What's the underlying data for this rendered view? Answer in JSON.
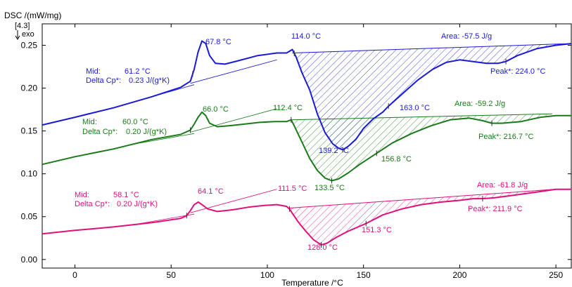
{
  "chart_data": {
    "type": "line",
    "title": "",
    "xlabel": "Temperature /°C",
    "ylabel": "DSC /(mW/mg)",
    "y_marker": "[4.3]",
    "exo_label": "exo",
    "xlim": [
      -17,
      258
    ],
    "ylim": [
      -0.01,
      0.275
    ],
    "x_ticks": [
      0,
      50,
      100,
      150,
      200,
      250
    ],
    "y_ticks": [
      0.0,
      0.05,
      0.1,
      0.15,
      0.2,
      0.25
    ],
    "y_tick_labels": [
      "0.00",
      "0.05",
      "0.10",
      "0.15",
      "0.20",
      "0.25"
    ],
    "grid": false,
    "series": [
      {
        "color": "#1a1ad6",
        "x": [
          -17,
          0,
          20,
          40,
          55,
          60,
          62,
          64,
          66,
          68,
          70,
          73,
          78,
          85,
          95,
          105,
          110,
          113,
          115,
          118,
          122,
          126,
          130,
          134,
          137,
          139.2,
          142,
          146,
          150,
          155,
          160,
          163,
          170,
          178,
          186,
          193,
          200,
          207,
          214,
          220,
          224,
          230,
          240,
          250,
          258
        ],
        "values": [
          0.157,
          0.166,
          0.177,
          0.19,
          0.201,
          0.208,
          0.222,
          0.242,
          0.255,
          0.252,
          0.238,
          0.229,
          0.228,
          0.232,
          0.238,
          0.241,
          0.241,
          0.245,
          0.236,
          0.218,
          0.198,
          0.17,
          0.148,
          0.135,
          0.13,
          0.128,
          0.132,
          0.14,
          0.153,
          0.164,
          0.172,
          0.179,
          0.193,
          0.209,
          0.222,
          0.23,
          0.233,
          0.231,
          0.229,
          0.229,
          0.231,
          0.238,
          0.246,
          0.25,
          0.252
        ],
        "baseline_points": [
          [
            113,
            0.241
          ],
          [
            258,
            0.252
          ]
        ],
        "labels": {
          "peak1": "67.8 °C",
          "onset": "114.0 °C",
          "area": "Area: -57.5 J/g",
          "peak_main": "139.2 °C",
          "shoulder": "163.0 °C",
          "peak_star": "Peak*:  224.0 °C",
          "mid_label": "Mid:",
          "mid_value": "61.2 °C",
          "cp_label": "Delta Cp*:",
          "cp_value": "0.23 J/(g*K)"
        }
      },
      {
        "color": "#1a7a1a",
        "x": [
          -17,
          0,
          20,
          40,
          55,
          60,
          62,
          64,
          66,
          68,
          70,
          74,
          80,
          88,
          96,
          104,
          110,
          112.4,
          114,
          118,
          122,
          126,
          130,
          133.5,
          137,
          142,
          148,
          156.8,
          165,
          175,
          185,
          195,
          205,
          212,
          216.7,
          222,
          232,
          242,
          250,
          258
        ],
        "values": [
          0.111,
          0.12,
          0.129,
          0.14,
          0.146,
          0.151,
          0.158,
          0.166,
          0.172,
          0.168,
          0.159,
          0.155,
          0.156,
          0.158,
          0.16,
          0.161,
          0.161,
          0.163,
          0.156,
          0.137,
          0.118,
          0.104,
          0.095,
          0.092,
          0.094,
          0.101,
          0.111,
          0.124,
          0.136,
          0.147,
          0.156,
          0.163,
          0.165,
          0.162,
          0.159,
          0.159,
          0.161,
          0.166,
          0.168,
          0.168
        ],
        "baseline_points": [
          [
            112.4,
            0.163
          ],
          [
            248,
            0.17
          ]
        ],
        "labels": {
          "peak1": "66.0 °C",
          "onset": "112.4 °C",
          "area": "Area: -59.2 J/g",
          "peak_main": "133.5 °C",
          "shoulder": "156.8 °C",
          "peak_star": "Peak*:  216.7 °C",
          "mid_label": "Mid:",
          "mid_value": "60.0 °C",
          "cp_label": "Delta Cp*:",
          "cp_value": "0.20 J/(g*K)"
        }
      },
      {
        "color": "#e0107a",
        "x": [
          -17,
          0,
          20,
          40,
          55,
          58,
          60,
          62,
          64.1,
          66,
          69,
          74,
          82,
          90,
          98,
          105,
          110,
          111.5,
          113,
          116,
          120,
          124,
          128,
          131,
          136,
          142,
          151.3,
          160,
          170,
          180,
          190,
          200,
          207,
          211.9,
          218,
          228,
          238,
          250,
          258
        ],
        "values": [
          0.03,
          0.034,
          0.038,
          0.043,
          0.048,
          0.051,
          0.057,
          0.064,
          0.067,
          0.064,
          0.059,
          0.056,
          0.058,
          0.061,
          0.063,
          0.064,
          0.062,
          0.059,
          0.054,
          0.044,
          0.033,
          0.023,
          0.017,
          0.019,
          0.026,
          0.033,
          0.042,
          0.052,
          0.059,
          0.064,
          0.067,
          0.069,
          0.071,
          0.071,
          0.072,
          0.075,
          0.078,
          0.082,
          0.082
        ],
        "baseline_points": [
          [
            111.5,
            0.06
          ],
          [
            250,
            0.082
          ]
        ],
        "labels": {
          "peak1": "64.1 °C",
          "onset": "111.5 °C",
          "area": "Area: -61.8 J/g",
          "peak_main": "128.0 °C",
          "shoulder": "151.3 °C",
          "peak_star": "Peak*:  211.9 °C",
          "mid_label": "Mid:",
          "mid_value": "58.1 °C",
          "cp_label": "Delta Cp*:",
          "cp_value": "0.20 J/(g*K)"
        }
      }
    ]
  }
}
